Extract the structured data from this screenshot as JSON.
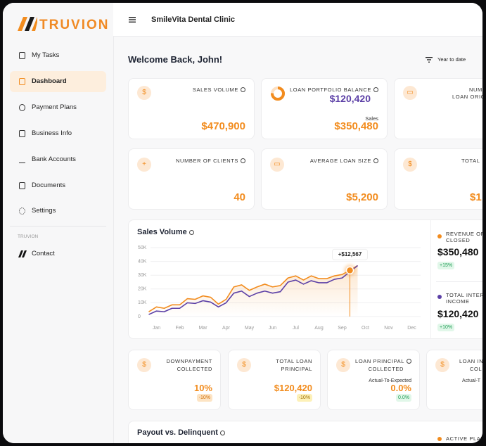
{
  "sidebar": {
    "logo": "TRUVION",
    "nav": [
      "My Tasks",
      "Dashboard",
      "Payment Plans",
      "Business Info",
      "Bank Accounts",
      "Documents",
      "Settings"
    ],
    "section": "TRUVION",
    "contact": "Contact"
  },
  "header": {
    "title": "SmileVita Dental Clinic"
  },
  "welcome": "Welcome Back, John!",
  "filter": "Year to date",
  "cards_row1": [
    {
      "label": "SALES VOLUME",
      "value": "$470,900"
    },
    {
      "label": "LOAN PORTFOLIO BALANCE",
      "value": "$120,420",
      "sub_label": "Sales",
      "sub_value": "$350,480"
    },
    {
      "label": [
        "NUM",
        "LOAN ORIG"
      ]
    }
  ],
  "cards_row2": [
    {
      "label": "NUMBER OF CLIENTS",
      "value": "40"
    },
    {
      "label": "AVERAGE LOAN SIZE",
      "value": "$5,200"
    },
    {
      "label": "TOTAL",
      "value": "$1"
    }
  ],
  "chart_card": {
    "title": "Sales Volume",
    "panel": [
      {
        "label": [
          "REVENUE OF",
          "CLOSED"
        ],
        "value": "$350,480",
        "change": "+15%"
      },
      {
        "label": [
          "TOTAL INTER",
          "INCOME"
        ],
        "value": "$120,420",
        "change": "+10%"
      }
    ]
  },
  "chart_data": {
    "type": "line",
    "categories": [
      null,
      "Jan",
      null,
      null,
      "Feb",
      null,
      null,
      "Mar",
      null,
      null,
      "Apr",
      null,
      null,
      "May",
      null,
      null,
      "Jun",
      null,
      null,
      "Jul",
      null,
      null,
      "Aug",
      null,
      null,
      "Sep",
      null,
      null,
      "Oct",
      null,
      null,
      "Nov",
      null,
      null,
      "Dec",
      null
    ],
    "series": [
      {
        "color": "#f28c1e",
        "values": [
          3500,
          7000,
          6000,
          8500,
          8500,
          13000,
          12500,
          15000,
          14000,
          9000,
          12500,
          21500,
          23000,
          19000,
          21500,
          23500,
          21500,
          22500,
          28000,
          29500,
          26500,
          29500,
          27500,
          27500,
          29500,
          30500,
          33500,
          37000,
          null,
          null,
          null,
          null,
          null,
          null,
          null,
          null
        ]
      },
      {
        "color": "#5b3fa6",
        "values": [
          1500,
          4000,
          3500,
          6000,
          6000,
          10000,
          9500,
          11500,
          10500,
          7000,
          10000,
          17000,
          18500,
          14500,
          17000,
          18500,
          17000,
          18000,
          25000,
          26500,
          23500,
          26000,
          24500,
          24500,
          27000,
          28000,
          32500,
          37000,
          null,
          null,
          null,
          null,
          null,
          null,
          null,
          null
        ]
      }
    ],
    "ylim": [
      0,
      50000
    ],
    "yticks": [
      0,
      {
        "value": 10000,
        "label": "10K"
      },
      {
        "value": 20000,
        "label": "20K"
      },
      {
        "value": 30000,
        "label": "30K"
      },
      {
        "value": 40000,
        "label": "40K"
      },
      {
        "value": 50000,
        "label": "50K"
      }
    ],
    "grid": true,
    "annotation": "+$12,567"
  },
  "cards_row3": [
    {
      "label": [
        "DOWNPAYMENT",
        "COLLECTED"
      ],
      "value": "10%",
      "change": "-10%"
    },
    {
      "label": [
        "TOTAL LOAN",
        "PRINCIPAL"
      ],
      "value": "$120,420",
      "change": "-10%"
    },
    {
      "label": [
        "LOAN PRINCIPAL",
        "COLLECTED"
      ],
      "sub": "Actual-To-Expected",
      "value": "0.0%",
      "change": "0.0%"
    },
    {
      "label": [
        "LOAN IN",
        "COL"
      ],
      "sub": "Actual-T"
    }
  ],
  "bottom_card": {
    "title": "Payout vs. Delinquent",
    "legend": "ACTIVE PLAN"
  }
}
